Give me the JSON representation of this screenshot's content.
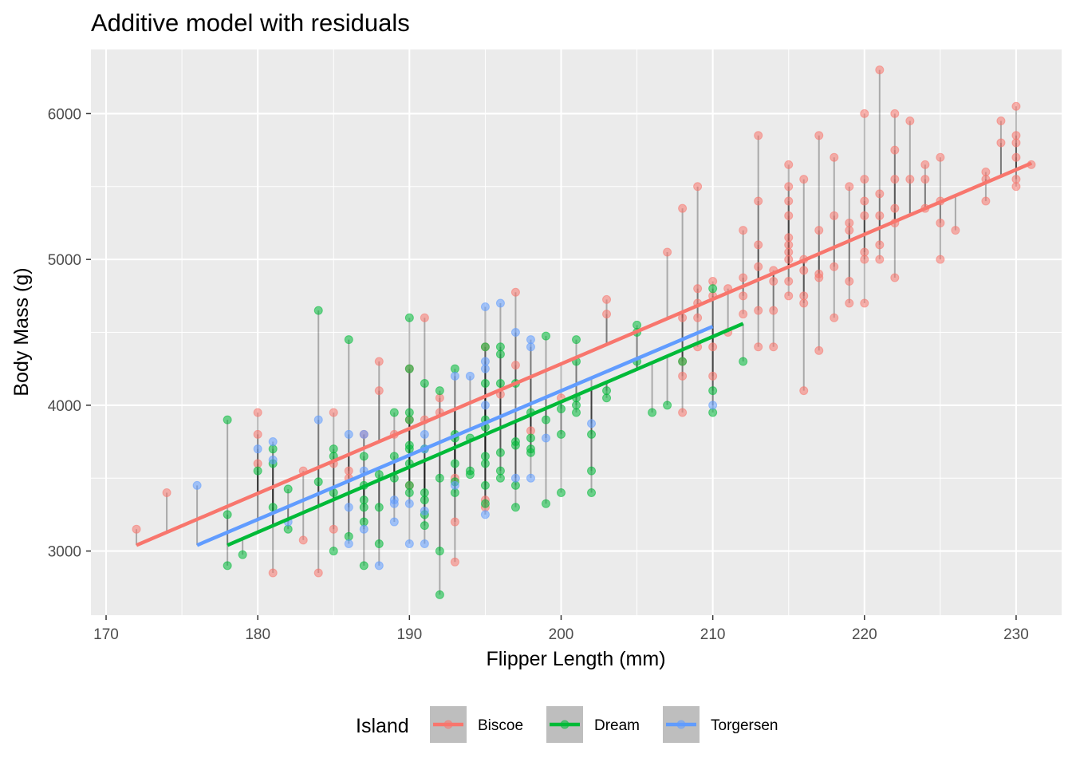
{
  "chart_data": {
    "type": "scatter",
    "title": "Additive model with residuals",
    "xlabel": "Flipper Length (mm)",
    "ylabel": "Body Mass (g)",
    "xlim": [
      169,
      233
    ],
    "ylim": [
      2560,
      6440
    ],
    "x_ticks": [
      170,
      180,
      190,
      200,
      210,
      220,
      230
    ],
    "y_ticks": [
      3000,
      4000,
      5000,
      6000
    ],
    "grid": true,
    "legend": {
      "title": "Island",
      "placement": "bottom",
      "entries": [
        "Biscoe",
        "Dream",
        "Torgersen"
      ]
    },
    "residual_segments": true,
    "series": [
      {
        "name": "Biscoe",
        "color": "#F8766D",
        "fit_line": [
          [
            172,
            3040
          ],
          [
            231,
            5660
          ]
        ],
        "points": [
          [
            172,
            3150
          ],
          [
            174,
            3400
          ],
          [
            180,
            3950
          ],
          [
            180,
            3800
          ],
          [
            180,
            3600
          ],
          [
            181,
            2850
          ],
          [
            183,
            3550
          ],
          [
            183,
            3075
          ],
          [
            184,
            2850
          ],
          [
            185,
            3950
          ],
          [
            185,
            3600
          ],
          [
            185,
            3150
          ],
          [
            186,
            3550
          ],
          [
            186,
            3500
          ],
          [
            187,
            3800
          ],
          [
            188,
            4300
          ],
          [
            188,
            4100
          ],
          [
            189,
            3800
          ],
          [
            190,
            4250
          ],
          [
            190,
            3900
          ],
          [
            190,
            3450
          ],
          [
            191,
            4600
          ],
          [
            191,
            3900
          ],
          [
            192,
            4050
          ],
          [
            192,
            3950
          ],
          [
            193,
            3200
          ],
          [
            193,
            2925
          ],
          [
            193,
            3500
          ],
          [
            195,
            4400
          ],
          [
            195,
            3350
          ],
          [
            195,
            3300
          ],
          [
            196,
            4075
          ],
          [
            197,
            4775
          ],
          [
            197,
            4275
          ],
          [
            198,
            3825
          ],
          [
            200,
            4050
          ],
          [
            203,
            4725
          ],
          [
            203,
            4625
          ],
          [
            207,
            5050
          ],
          [
            208,
            5350
          ],
          [
            208,
            4600
          ],
          [
            208,
            4300
          ],
          [
            208,
            4200
          ],
          [
            208,
            3950
          ],
          [
            209,
            5500
          ],
          [
            209,
            4800
          ],
          [
            209,
            4700
          ],
          [
            209,
            4600
          ],
          [
            209,
            4400
          ],
          [
            210,
            4850
          ],
          [
            210,
            4750
          ],
          [
            210,
            4400
          ],
          [
            210,
            4200
          ],
          [
            211,
            4800
          ],
          [
            211,
            4500
          ],
          [
            212,
            5200
          ],
          [
            212,
            4875
          ],
          [
            212,
            4750
          ],
          [
            212,
            4625
          ],
          [
            213,
            5850
          ],
          [
            213,
            5400
          ],
          [
            213,
            5100
          ],
          [
            213,
            4950
          ],
          [
            213,
            4650
          ],
          [
            213,
            4400
          ],
          [
            214,
            4925
          ],
          [
            214,
            4850
          ],
          [
            214,
            4650
          ],
          [
            214,
            4400
          ],
          [
            215,
            5650
          ],
          [
            215,
            5500
          ],
          [
            215,
            5400
          ],
          [
            215,
            5300
          ],
          [
            215,
            5150
          ],
          [
            215,
            5100
          ],
          [
            215,
            5050
          ],
          [
            215,
            5000
          ],
          [
            215,
            4850
          ],
          [
            215,
            4750
          ],
          [
            216,
            5550
          ],
          [
            216,
            5000
          ],
          [
            216,
            4925
          ],
          [
            216,
            4750
          ],
          [
            216,
            4700
          ],
          [
            216,
            4100
          ],
          [
            217,
            5850
          ],
          [
            217,
            5200
          ],
          [
            217,
            4900
          ],
          [
            217,
            4875
          ],
          [
            217,
            4375
          ],
          [
            218,
            5700
          ],
          [
            218,
            5300
          ],
          [
            218,
            4950
          ],
          [
            218,
            4600
          ],
          [
            219,
            5500
          ],
          [
            219,
            5250
          ],
          [
            219,
            5200
          ],
          [
            219,
            4850
          ],
          [
            219,
            4700
          ],
          [
            220,
            6000
          ],
          [
            220,
            5550
          ],
          [
            220,
            5400
          ],
          [
            220,
            5300
          ],
          [
            220,
            5050
          ],
          [
            220,
            5000
          ],
          [
            220,
            4700
          ],
          [
            221,
            6300
          ],
          [
            221,
            5450
          ],
          [
            221,
            5300
          ],
          [
            221,
            5100
          ],
          [
            221,
            5000
          ],
          [
            222,
            6000
          ],
          [
            222,
            5750
          ],
          [
            222,
            5550
          ],
          [
            222,
            5350
          ],
          [
            222,
            5250
          ],
          [
            222,
            4875
          ],
          [
            223,
            5950
          ],
          [
            223,
            5550
          ],
          [
            224,
            5650
          ],
          [
            224,
            5550
          ],
          [
            224,
            5350
          ],
          [
            225,
            5700
          ],
          [
            225,
            5400
          ],
          [
            225,
            5250
          ],
          [
            225,
            5000
          ],
          [
            226,
            5200
          ],
          [
            228,
            5600
          ],
          [
            228,
            5550
          ],
          [
            228,
            5400
          ],
          [
            229,
            5950
          ],
          [
            229,
            5800
          ],
          [
            230,
            6050
          ],
          [
            230,
            5850
          ],
          [
            230,
            5800
          ],
          [
            230,
            5700
          ],
          [
            230,
            5550
          ],
          [
            230,
            5500
          ],
          [
            231,
            5650
          ]
        ]
      },
      {
        "name": "Dream",
        "color": "#00BA38",
        "fit_line": [
          [
            178,
            3040
          ],
          [
            212,
            4560
          ]
        ],
        "points": [
          [
            178,
            3900
          ],
          [
            178,
            3250
          ],
          [
            178,
            2900
          ],
          [
            179,
            2975
          ],
          [
            180,
            3550
          ],
          [
            181,
            3700
          ],
          [
            181,
            3600
          ],
          [
            181,
            3300
          ],
          [
            182,
            3425
          ],
          [
            182,
            3150
          ],
          [
            184,
            4650
          ],
          [
            184,
            3475
          ],
          [
            185,
            3700
          ],
          [
            185,
            3650
          ],
          [
            185,
            3400
          ],
          [
            185,
            3000
          ],
          [
            186,
            4450
          ],
          [
            186,
            3100
          ],
          [
            187,
            3650
          ],
          [
            187,
            3450
          ],
          [
            187,
            3350
          ],
          [
            187,
            3300
          ],
          [
            187,
            3200
          ],
          [
            187,
            2900
          ],
          [
            188,
            3525
          ],
          [
            188,
            3300
          ],
          [
            188,
            3050
          ],
          [
            189,
            3950
          ],
          [
            189,
            3650
          ],
          [
            189,
            3500
          ],
          [
            190,
            4600
          ],
          [
            190,
            4250
          ],
          [
            190,
            3950
          ],
          [
            190,
            3900
          ],
          [
            190,
            3725
          ],
          [
            190,
            3700
          ],
          [
            190,
            3600
          ],
          [
            190,
            3450
          ],
          [
            190,
            3400
          ],
          [
            191,
            4150
          ],
          [
            191,
            3700
          ],
          [
            191,
            3400
          ],
          [
            191,
            3350
          ],
          [
            191,
            3250
          ],
          [
            191,
            3175
          ],
          [
            192,
            4100
          ],
          [
            192,
            3500
          ],
          [
            192,
            3000
          ],
          [
            192,
            2700
          ],
          [
            193,
            4250
          ],
          [
            193,
            3800
          ],
          [
            193,
            3775
          ],
          [
            193,
            3600
          ],
          [
            193,
            3475
          ],
          [
            193,
            3400
          ],
          [
            194,
            3775
          ],
          [
            194,
            3550
          ],
          [
            194,
            3525
          ],
          [
            195,
            4400
          ],
          [
            195,
            4150
          ],
          [
            195,
            3900
          ],
          [
            195,
            3850
          ],
          [
            195,
            3650
          ],
          [
            195,
            3600
          ],
          [
            195,
            3450
          ],
          [
            195,
            3325
          ],
          [
            196,
            4400
          ],
          [
            196,
            4350
          ],
          [
            196,
            4150
          ],
          [
            196,
            3675
          ],
          [
            196,
            3550
          ],
          [
            196,
            3500
          ],
          [
            197,
            4150
          ],
          [
            197,
            3750
          ],
          [
            197,
            3725
          ],
          [
            197,
            3450
          ],
          [
            197,
            3300
          ],
          [
            198,
            3950
          ],
          [
            198,
            3775
          ],
          [
            198,
            3700
          ],
          [
            198,
            3675
          ],
          [
            199,
            4475
          ],
          [
            199,
            3900
          ],
          [
            199,
            3325
          ],
          [
            200,
            3975
          ],
          [
            200,
            3800
          ],
          [
            200,
            3400
          ],
          [
            201,
            4450
          ],
          [
            201,
            4300
          ],
          [
            201,
            4050
          ],
          [
            201,
            4000
          ],
          [
            201,
            3950
          ],
          [
            202,
            3800
          ],
          [
            202,
            3550
          ],
          [
            202,
            3400
          ],
          [
            203,
            4100
          ],
          [
            203,
            4050
          ],
          [
            205,
            4550
          ],
          [
            205,
            4500
          ],
          [
            205,
            4300
          ],
          [
            206,
            3950
          ],
          [
            207,
            4000
          ],
          [
            208,
            4300
          ],
          [
            210,
            4800
          ],
          [
            210,
            4100
          ],
          [
            210,
            3950
          ],
          [
            212,
            4300
          ]
        ]
      },
      {
        "name": "Torgersen",
        "color": "#619CFF",
        "fit_line": [
          [
            176,
            3040
          ],
          [
            210,
            4540
          ]
        ],
        "points": [
          [
            176,
            3450
          ],
          [
            180,
            3700
          ],
          [
            181,
            3750
          ],
          [
            181,
            3625
          ],
          [
            182,
            3200
          ],
          [
            184,
            3900
          ],
          [
            186,
            3800
          ],
          [
            186,
            3300
          ],
          [
            186,
            3050
          ],
          [
            187,
            3800
          ],
          [
            187,
            3550
          ],
          [
            187,
            3150
          ],
          [
            188,
            2900
          ],
          [
            189,
            3350
          ],
          [
            189,
            3325
          ],
          [
            189,
            3200
          ],
          [
            190,
            3325
          ],
          [
            190,
            3050
          ],
          [
            191,
            3800
          ],
          [
            191,
            3700
          ],
          [
            191,
            3275
          ],
          [
            191,
            3050
          ],
          [
            193,
            4200
          ],
          [
            193,
            3450
          ],
          [
            194,
            4200
          ],
          [
            195,
            4675
          ],
          [
            195,
            4300
          ],
          [
            195,
            4250
          ],
          [
            195,
            4000
          ],
          [
            195,
            3250
          ],
          [
            196,
            4700
          ],
          [
            197,
            4500
          ],
          [
            197,
            3500
          ],
          [
            198,
            4450
          ],
          [
            198,
            4400
          ],
          [
            198,
            3500
          ],
          [
            199,
            3775
          ],
          [
            202,
            3875
          ],
          [
            210,
            4000
          ]
        ]
      }
    ]
  }
}
